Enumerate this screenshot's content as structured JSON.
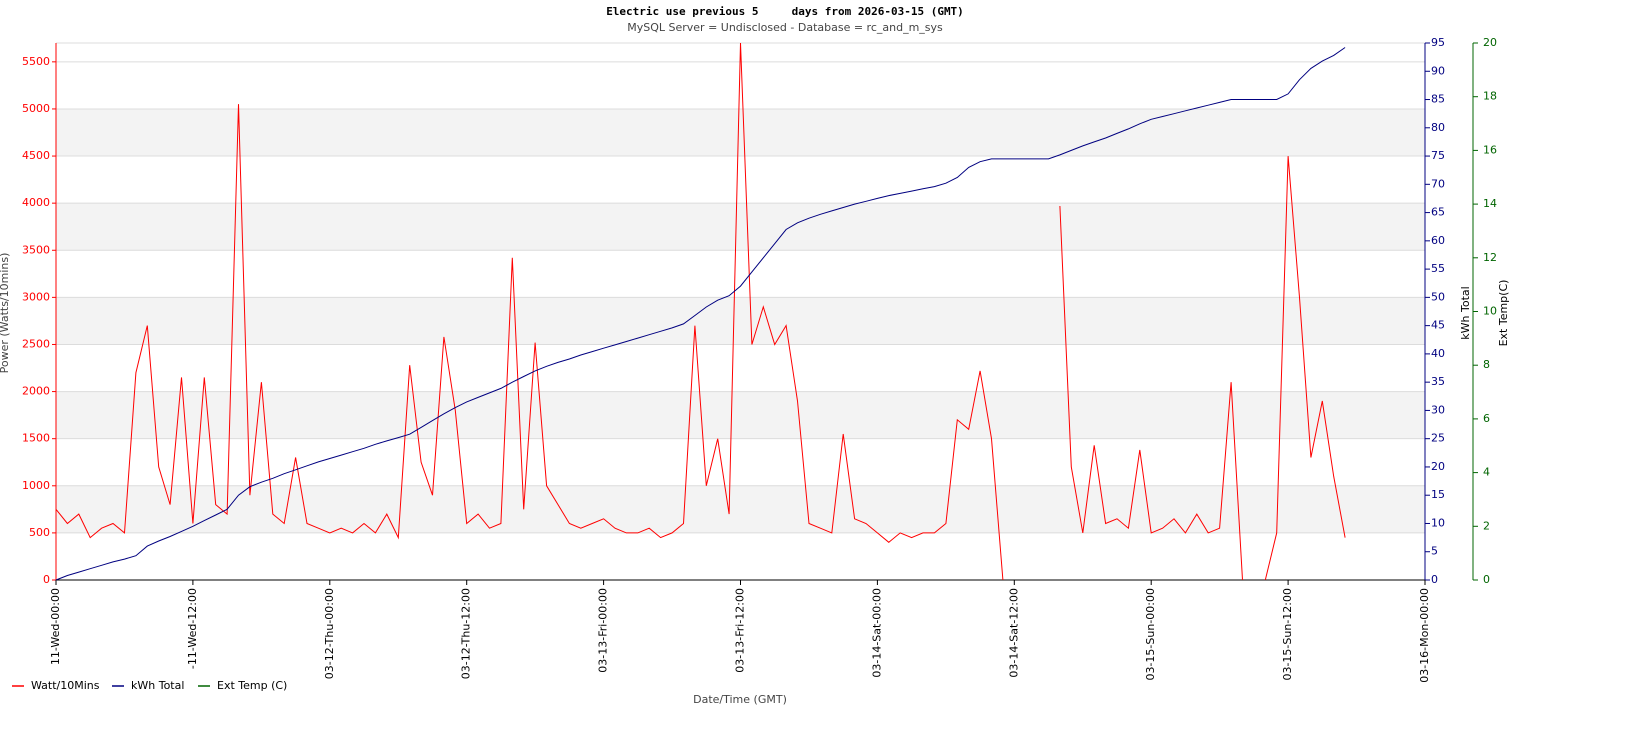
{
  "chart_data": {
    "type": "line",
    "title": "Electric use previous 5     days from 2026-03-15 (GMT)",
    "subtitle": "MySQL Server = Undisclosed - Database = rc_and_m_sys",
    "x_label": "Date/Time (GMT)",
    "y_label": "Power (Watts/10mins)",
    "y2_label": "kWh Total",
    "y3_label": "Ext Temp(C)",
    "grid": true,
    "legend": "bottom-left",
    "xlim": [
      "2026-03-11T00:00",
      "2026-03-16T00:00"
    ],
    "xticks": [
      {
        "value": "2026-03-11T00:00",
        "label": "11-Wed-00:00"
      },
      {
        "value": "2026-03-11T12:00",
        "label": "-11-Wed-12:00"
      },
      {
        "value": "2026-03-12T00:00",
        "label": "03-12-Thu-00:00"
      },
      {
        "value": "2026-03-12T12:00",
        "label": "03-12-Thu-12:00"
      },
      {
        "value": "2026-03-13T00:00",
        "label": "03-13-Fri-00:00"
      },
      {
        "value": "2026-03-13T12:00",
        "label": "03-13-Fri-12:00"
      },
      {
        "value": "2026-03-14T00:00",
        "label": "03-14-Sat-00:00"
      },
      {
        "value": "2026-03-14T12:00",
        "label": "03-14-Sat-12:00"
      },
      {
        "value": "2026-03-15T00:00",
        "label": "03-15-Sun-00:00"
      },
      {
        "value": "2026-03-15T12:00",
        "label": "03-15-Sun-12:00"
      },
      {
        "value": "2026-03-16T00:00",
        "label": "03-16-Mon-00:00"
      }
    ],
    "ylim": [
      0,
      5700
    ],
    "yticks": [
      0,
      500,
      1000,
      1500,
      2000,
      2500,
      3000,
      3500,
      4000,
      4500,
      5000,
      5500
    ],
    "y2lim": [
      0,
      95
    ],
    "y2ticks": [
      0,
      5,
      10,
      15,
      20,
      25,
      30,
      35,
      40,
      45,
      50,
      55,
      60,
      65,
      70,
      75,
      80,
      85,
      90,
      95
    ],
    "y3lim": [
      0,
      20
    ],
    "y3ticks": [
      0,
      2,
      4,
      6,
      8,
      10,
      12,
      14,
      16,
      18,
      20
    ],
    "x": [
      "2026-03-11T00:00",
      "2026-03-11T01:00",
      "2026-03-11T02:00",
      "2026-03-11T03:00",
      "2026-03-11T04:00",
      "2026-03-11T05:00",
      "2026-03-11T06:00",
      "2026-03-11T07:00",
      "2026-03-11T08:00",
      "2026-03-11T09:00",
      "2026-03-11T10:00",
      "2026-03-11T11:00",
      "2026-03-11T12:00",
      "2026-03-11T13:00",
      "2026-03-11T14:00",
      "2026-03-11T15:00",
      "2026-03-11T16:00",
      "2026-03-11T17:00",
      "2026-03-11T18:00",
      "2026-03-11T19:00",
      "2026-03-11T20:00",
      "2026-03-11T21:00",
      "2026-03-11T22:00",
      "2026-03-11T23:00",
      "2026-03-12T00:00",
      "2026-03-12T01:00",
      "2026-03-12T02:00",
      "2026-03-12T03:00",
      "2026-03-12T04:00",
      "2026-03-12T05:00",
      "2026-03-12T06:00",
      "2026-03-12T07:00",
      "2026-03-12T08:00",
      "2026-03-12T09:00",
      "2026-03-12T10:00",
      "2026-03-12T11:00",
      "2026-03-12T12:00",
      "2026-03-12T13:00",
      "2026-03-12T14:00",
      "2026-03-12T15:00",
      "2026-03-12T16:00",
      "2026-03-12T17:00",
      "2026-03-12T18:00",
      "2026-03-12T19:00",
      "2026-03-12T20:00",
      "2026-03-12T21:00",
      "2026-03-12T22:00",
      "2026-03-12T23:00",
      "2026-03-13T00:00",
      "2026-03-13T01:00",
      "2026-03-13T02:00",
      "2026-03-13T03:00",
      "2026-03-13T04:00",
      "2026-03-13T05:00",
      "2026-03-13T06:00",
      "2026-03-13T07:00",
      "2026-03-13T08:00",
      "2026-03-13T09:00",
      "2026-03-13T10:00",
      "2026-03-13T11:00",
      "2026-03-13T12:00",
      "2026-03-13T13:00",
      "2026-03-13T14:00",
      "2026-03-13T15:00",
      "2026-03-13T16:00",
      "2026-03-13T17:00",
      "2026-03-13T18:00",
      "2026-03-13T19:00",
      "2026-03-13T20:00",
      "2026-03-13T21:00",
      "2026-03-13T22:00",
      "2026-03-13T23:00",
      "2026-03-14T00:00",
      "2026-03-14T01:00",
      "2026-03-14T02:00",
      "2026-03-14T03:00",
      "2026-03-14T04:00",
      "2026-03-14T05:00",
      "2026-03-14T06:00",
      "2026-03-14T07:00",
      "2026-03-14T08:00",
      "2026-03-14T09:00",
      "2026-03-14T10:00",
      "2026-03-14T11:00",
      "2026-03-14T12:00",
      "2026-03-14T13:00",
      "2026-03-14T14:00",
      "2026-03-14T15:00",
      "2026-03-14T16:00",
      "2026-03-14T17:00",
      "2026-03-14T18:00",
      "2026-03-14T19:00",
      "2026-03-14T20:00",
      "2026-03-14T21:00",
      "2026-03-14T22:00",
      "2026-03-14T23:00",
      "2026-03-15T00:00",
      "2026-03-15T01:00",
      "2026-03-15T02:00",
      "2026-03-15T03:00",
      "2026-03-15T04:00",
      "2026-03-15T05:00",
      "2026-03-15T06:00",
      "2026-03-15T07:00",
      "2026-03-15T08:00",
      "2026-03-15T09:00",
      "2026-03-15T10:00",
      "2026-03-15T11:00",
      "2026-03-15T12:00",
      "2026-03-15T13:00",
      "2026-03-15T14:00",
      "2026-03-15T15:00",
      "2026-03-15T16:00",
      "2026-03-15T17:00"
    ],
    "series": [
      {
        "name": "Watt/10Mins",
        "color": "#ff0000",
        "axis": "y",
        "values": [
          750,
          600,
          700,
          450,
          550,
          600,
          500,
          2200,
          2700,
          1200,
          800,
          2150,
          600,
          2150,
          800,
          700,
          5050,
          900,
          2100,
          700,
          600,
          1300,
          600,
          550,
          500,
          550,
          500,
          600,
          500,
          700,
          450,
          2280,
          1250,
          900,
          2580,
          1800,
          600,
          700,
          550,
          600,
          3420,
          750,
          2520,
          1000,
          800,
          600,
          550,
          600,
          650,
          550,
          500,
          500,
          550,
          450,
          500,
          600,
          2700,
          1000,
          1500,
          700,
          5700,
          2500,
          2900,
          2500,
          2700,
          1900,
          600,
          550,
          500,
          1550,
          650,
          600,
          500,
          400,
          500,
          450,
          500,
          500,
          600,
          1700,
          1600,
          2220,
          1500,
          0,
          null,
          null,
          null,
          null,
          3970,
          1200,
          500,
          1430,
          600,
          650,
          550,
          1380,
          500,
          550,
          650,
          500,
          700,
          500,
          550,
          2100,
          0,
          null,
          0,
          500,
          4500,
          3000,
          1300,
          1900,
          1100,
          450
        ]
      },
      {
        "name": "kWh Total",
        "color": "#000080",
        "axis": "y2",
        "values": [
          0,
          0.8,
          1.4,
          2,
          2.6,
          3.2,
          3.7,
          4.3,
          6,
          6.9,
          7.7,
          8.6,
          9.5,
          10.5,
          11.5,
          12.5,
          15,
          16.5,
          17.3,
          18,
          18.8,
          19.5,
          20.2,
          20.9,
          21.5,
          22.1,
          22.7,
          23.3,
          24,
          24.6,
          25.2,
          25.8,
          27,
          28.2,
          29.4,
          30.5,
          31.5,
          32.3,
          33.1,
          33.9,
          35,
          36,
          37,
          37.8,
          38.5,
          39.1,
          39.8,
          40.4,
          41,
          41.6,
          42.2,
          42.8,
          43.4,
          44,
          44.6,
          45.3,
          46.8,
          48.3,
          49.5,
          50.3,
          52,
          54.5,
          57,
          59.5,
          62,
          63.2,
          64,
          64.7,
          65.3,
          65.9,
          66.5,
          67,
          67.5,
          68,
          68.4,
          68.8,
          69.2,
          69.6,
          70.2,
          71.2,
          73,
          74,
          74.5,
          74.5,
          74.5,
          74.5,
          74.5,
          74.5,
          75.2,
          76,
          76.8,
          77.5,
          78.2,
          79,
          79.8,
          80.7,
          81.5,
          82,
          82.5,
          83,
          83.5,
          84,
          84.5,
          85,
          85,
          85,
          85,
          85,
          86,
          88.5,
          90.5,
          91.8,
          92.8,
          94.2
        ]
      },
      {
        "name": "Ext Temp (C)",
        "color": "#006400",
        "axis": "y3",
        "values": [
          null,
          null,
          null,
          null,
          null,
          null,
          null,
          null,
          null,
          null,
          null,
          null,
          null,
          null,
          null,
          null,
          null,
          null,
          null,
          null,
          null,
          null,
          null,
          null,
          null,
          null,
          null,
          null,
          null,
          null,
          null,
          null,
          null,
          null,
          null,
          null,
          null,
          null,
          null,
          null,
          null,
          null,
          null,
          null,
          null,
          null,
          null,
          null,
          null,
          null,
          null,
          null,
          null,
          null,
          null,
          null,
          null,
          null,
          null,
          null,
          null,
          null,
          null,
          null,
          null,
          null,
          null,
          null,
          null,
          null,
          null,
          null,
          null,
          null,
          null,
          null,
          null,
          null,
          null,
          null,
          null,
          null,
          null,
          null,
          null,
          null,
          null,
          null,
          null,
          null,
          null,
          null,
          null,
          null,
          null,
          null,
          null,
          null,
          null,
          null,
          null,
          null,
          null,
          null,
          null,
          null,
          null,
          null,
          null,
          null,
          null,
          null,
          null,
          null
        ]
      }
    ]
  }
}
